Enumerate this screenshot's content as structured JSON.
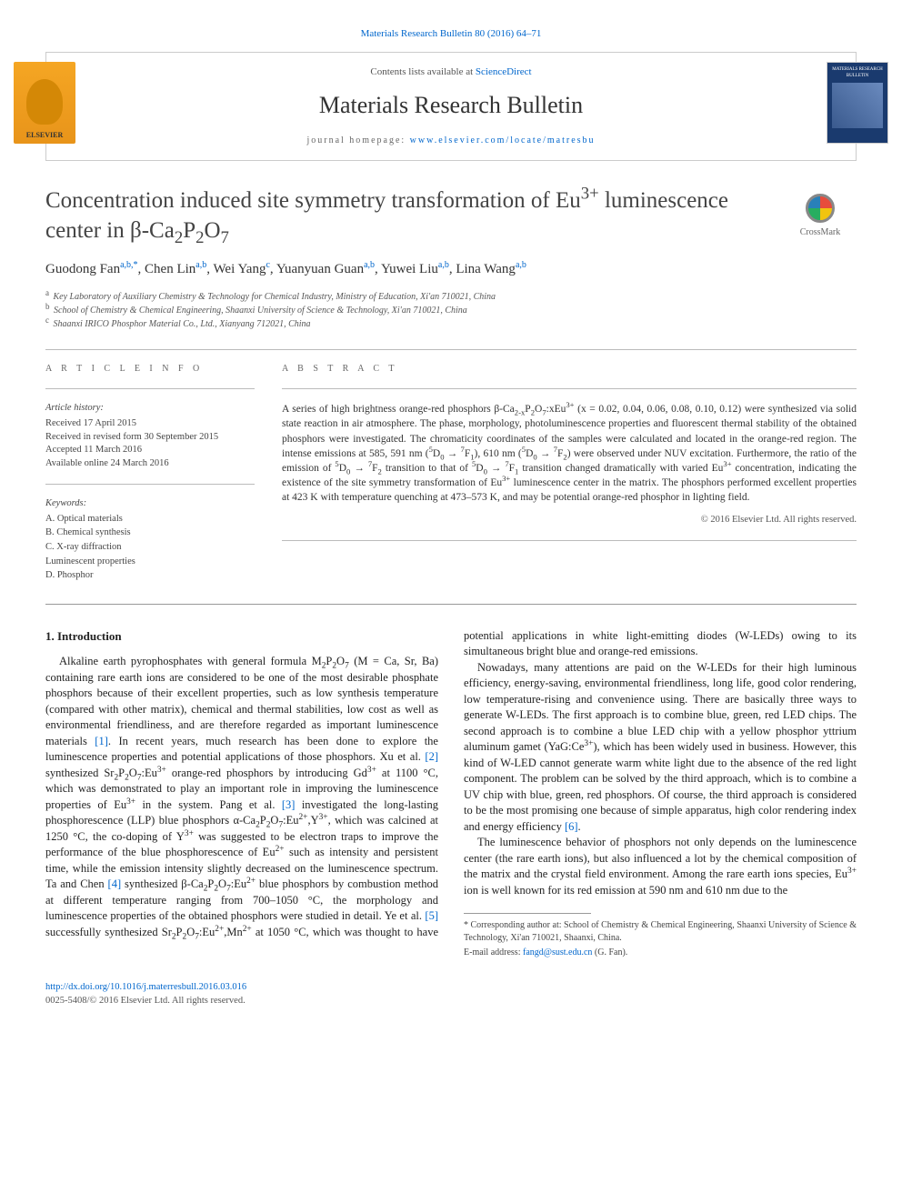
{
  "top_link": {
    "text": "Materials Research Bulletin 80 (2016) 64–71",
    "url_label": "Materials Research Bulletin 80 (2016) 64–71"
  },
  "masthead": {
    "contents_prefix": "Contents lists available at ",
    "contents_link": "ScienceDirect",
    "journal_name": "Materials Research Bulletin",
    "homepage_prefix": "journal homepage: ",
    "homepage_link": "www.elsevier.com/locate/matresbu",
    "publisher_label": "ELSEVIER",
    "cover_label": "MATERIALS RESEARCH BULLETIN"
  },
  "article": {
    "title_html": "Concentration induced site symmetry transformation of Eu<sup>3+</sup> luminescence center in β-Ca<sub>2</sub>P<sub>2</sub>O<sub>7</sub>",
    "crossmark_label": "CrossMark",
    "authors_html": "Guodong Fan<sup>a,b,*</sup>, Chen Lin<sup>a,b</sup>, Wei Yang<sup>c</sup>, Yuanyuan Guan<sup>a,b</sup>, Yuwei Liu<sup>a,b</sup>, Lina Wang<sup>a,b</sup>",
    "affiliations": [
      {
        "key": "a",
        "text": "Key Laboratory of Auxiliary Chemistry & Technology for Chemical Industry, Ministry of Education, Xi'an 710021, China"
      },
      {
        "key": "b",
        "text": "School of Chemistry & Chemical Engineering, Shaanxi University of Science & Technology, Xi'an 710021, China"
      },
      {
        "key": "c",
        "text": "Shaanxi IRICO Phosphor Material Co., Ltd., Xianyang 712021, China"
      }
    ]
  },
  "info": {
    "head": "A R T I C L E   I N F O",
    "history_label": "Article history:",
    "history": [
      "Received 17 April 2015",
      "Received in revised form 30 September 2015",
      "Accepted 11 March 2016",
      "Available online 24 March 2016"
    ],
    "keywords_label": "Keywords:",
    "keywords": [
      "A. Optical materials",
      "B. Chemical synthesis",
      "C. X-ray diffraction",
      "Luminescent properties",
      "D. Phosphor"
    ]
  },
  "abstract": {
    "head": "A B S T R A C T",
    "text_html": "A series of high brightness orange-red phosphors β-Ca<sub>2-x</sub>P<sub>2</sub>O<sub>7</sub>:xEu<sup>3+</sup> (x = 0.02, 0.04, 0.06, 0.08, 0.10, 0.12) were synthesized via solid state reaction in air atmosphere. The phase, morphology, photoluminescence properties and fluorescent thermal stability of the obtained phosphors were investigated. The chromaticity coordinates of the samples were calculated and located in the orange-red region. The intense emissions at 585, 591 nm (<sup>5</sup>D<sub>0</sub> → <sup>7</sup>F<sub>1</sub>), 610 nm (<sup>5</sup>D<sub>0</sub> → <sup>7</sup>F<sub>2</sub>) were observed under NUV excitation. Furthermore, the ratio of the emission of <sup>5</sup>D<sub>0</sub> → <sup>7</sup>F<sub>2</sub> transition to that of <sup>5</sup>D<sub>0</sub> → <sup>7</sup>F<sub>1</sub> transition changed dramatically with varied Eu<sup>3+</sup> concentration, indicating the existence of the site symmetry transformation of Eu<sup>3+</sup> luminescence center in the matrix. The phosphors performed excellent properties at 423 K with temperature quenching at 473–573 K, and may be potential orange-red phosphor in lighting field.",
    "copyright": "© 2016 Elsevier Ltd. All rights reserved."
  },
  "body": {
    "section1_heading": "1. Introduction",
    "para1_html": "Alkaline earth pyrophosphates with general formula M<sub>2</sub>P<sub>2</sub>O<sub>7</sub> (M = Ca, Sr, Ba) containing rare earth ions are considered to be one of the most desirable phosphate phosphors because of their excellent properties, such as low synthesis temperature (compared with other matrix), chemical and thermal stabilities, low cost as well as environmental friendliness, and are therefore regarded as important luminescence materials <a class=\"cite\" data-name=\"citation-link\" data-interactable=\"true\">[1]</a>. In recent years, much research has been done to explore the luminescence properties and potential applications of those phosphors. Xu et al. <a class=\"cite\" data-name=\"citation-link\" data-interactable=\"true\">[2]</a> synthesized Sr<sub>2</sub>P<sub>2</sub>O<sub>7</sub>:Eu<sup>3+</sup> orange-red phosphors by introducing Gd<sup>3+</sup> at 1100 °C, which was demonstrated to play an important role in improving the luminescence properties of Eu<sup>3+</sup> in the system. Pang et al. <a class=\"cite\" data-name=\"citation-link\" data-interactable=\"true\">[3]</a> investigated the long-lasting phosphorescence (LLP) blue phosphors α-Ca<sub>2</sub>P<sub>2</sub>O<sub>7</sub>:Eu<sup>2+</sup>,Y<sup>3+</sup>, which was calcined at 1250 °C, the co-doping of Y<sup>3+</sup> was suggested to be electron traps to improve the performance of the blue phosphorescence of Eu<sup>2+</sup> such as intensity and persistent time, while the emission intensity slightly decreased on the luminescence spectrum. Ta and Chen <a class=\"cite\" data-name=\"citation-link\" data-interactable=\"true\">[4]</a> synthesized β-Ca<sub>2</sub>P<sub>2</sub>O<sub>7</sub>:Eu<sup>2+</sup> blue phosphors by combustion method at different temperature ranging from 700–1050 °C, the morphology and luminescence properties of the obtained phosphors were studied in detail. Ye et al. <a class=\"cite\" data-name=\"citation-link\" data-interactable=\"true\">[5]</a> successfully synthesized Sr<sub>2</sub>P<sub>2</sub>O<sub>7</sub>:Eu<sup>2+</sup>,Mn<sup>2+</sup> at 1050 °C, which was thought to have potential applications in white light-emitting diodes (W-LEDs) owing to its simultaneous bright blue and orange-red emissions.",
    "para2_html": "Nowadays, many attentions are paid on the W-LEDs for their high luminous efficiency, energy-saving, environmental friendliness, long life, good color rendering, low temperature-rising and convenience using. There are basically three ways to generate W-LEDs. The first approach is to combine blue, green, red LED chips. The second approach is to combine a blue LED chip with a yellow phosphor yttrium aluminum gamet (YaG:Ce<sup>3+</sup>), which has been widely used in business. However, this kind of W-LED cannot generate warm white light due to the absence of the red light component. The problem can be solved by the third approach, which is to combine a UV chip with blue, green, red phosphors. Of course, the third approach is considered to be the most promising one because of simple apparatus, high color rendering index and energy efficiency <a class=\"cite\" data-name=\"citation-link\" data-interactable=\"true\">[6]</a>.",
    "para3_html": "The luminescence behavior of phosphors not only depends on the luminescence center (the rare earth ions), but also influenced a lot by the chemical composition of the matrix and the crystal field environment. Among the rare earth ions species, Eu<sup>3+</sup> ion is well known for its red emission at 590 nm and 610 nm due to the"
  },
  "footnotes": {
    "corr_html": "* Corresponding author at: School of Chemistry & Chemical Engineering, Shaanxi University of Science & Technology, Xi'an 710021, Shaanxi, China.",
    "email_label": "E-mail address: ",
    "email": "fangd@sust.edu.cn",
    "email_suffix": " (G. Fan)."
  },
  "doi": {
    "url": "http://dx.doi.org/10.1016/j.materresbull.2016.03.016",
    "issn_line": "0025-5408/© 2016 Elsevier Ltd. All rights reserved."
  },
  "colors": {
    "link": "#0066cc",
    "text": "#333333",
    "rule": "#bbbbbb",
    "publisher_bg": "#f5a623",
    "cover_bg": "#1a3a6e"
  }
}
